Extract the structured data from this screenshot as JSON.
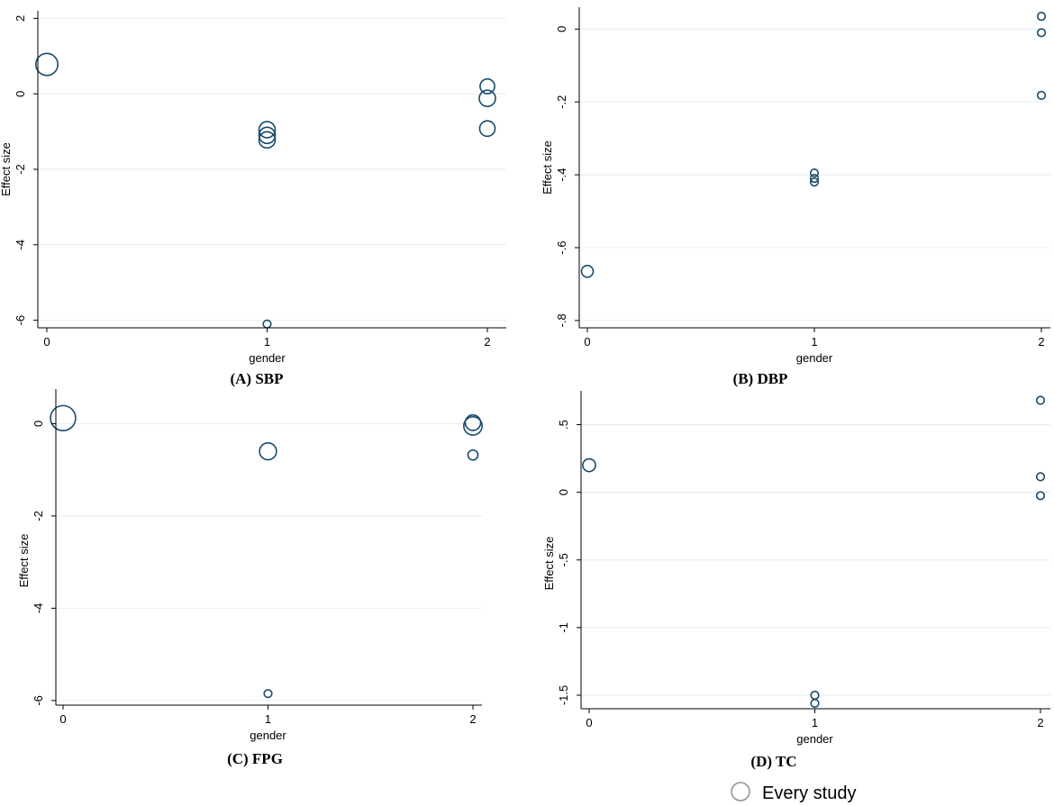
{
  "legend": {
    "label": "Every study",
    "marker_color": "#8a8f9c"
  },
  "colors": {
    "marker": "#1a4a6b",
    "grid": "#e6ecf0"
  },
  "chart_data": [
    {
      "id": "A",
      "type": "scatter",
      "caption": "(A)  SBP",
      "xlabel": "gender",
      "ylabel": "Effect size",
      "xlim": [
        0,
        2
      ],
      "ylim": [
        -6.2,
        2.2
      ],
      "x_ticks": [
        0,
        1,
        2
      ],
      "y_ticks": [
        2,
        0,
        -2,
        -4,
        -6
      ],
      "y_tick_labels": [
        "2",
        "0",
        "-2",
        "-4",
        "-6"
      ],
      "points": [
        {
          "x": 0,
          "y": 0.78,
          "weight": 3.8
        },
        {
          "x": 1,
          "y": -0.95,
          "weight": 2.0
        },
        {
          "x": 1,
          "y": -1.1,
          "weight": 2.0
        },
        {
          "x": 1,
          "y": -1.22,
          "weight": 2.0
        },
        {
          "x": 1,
          "y": -6.1,
          "weight": 0.4
        },
        {
          "x": 2,
          "y": 0.2,
          "weight": 1.6
        },
        {
          "x": 2,
          "y": -0.12,
          "weight": 2.0
        },
        {
          "x": 2,
          "y": -0.92,
          "weight": 1.8
        }
      ]
    },
    {
      "id": "B",
      "type": "scatter",
      "caption": "(B)  DBP",
      "xlabel": "gender",
      "ylabel": "Effect size",
      "xlim": [
        0,
        2
      ],
      "ylim": [
        -0.82,
        0.06
      ],
      "x_ticks": [
        0,
        1,
        2
      ],
      "y_ticks": [
        0,
        -0.2,
        -0.4,
        -0.6,
        -0.8
      ],
      "y_tick_labels": [
        "0",
        "-.2",
        "-.4",
        "-.6",
        "-.8"
      ],
      "points": [
        {
          "x": 0,
          "y": -0.665,
          "weight": 1.0
        },
        {
          "x": 1,
          "y": -0.395,
          "weight": 0.4
        },
        {
          "x": 1,
          "y": -0.41,
          "weight": 0.4
        },
        {
          "x": 1,
          "y": -0.42,
          "weight": 0.4
        },
        {
          "x": 2,
          "y": 0.035,
          "weight": 0.4
        },
        {
          "x": 2,
          "y": -0.01,
          "weight": 0.4
        },
        {
          "x": 2,
          "y": -0.182,
          "weight": 0.4
        }
      ]
    },
    {
      "id": "C",
      "type": "scatter",
      "caption": "(C)  FPG",
      "xlabel": "gender",
      "ylabel": "Effect size",
      "xlim": [
        0,
        2
      ],
      "ylim": [
        -6.1,
        0.75
      ],
      "x_ticks": [
        0,
        1,
        2
      ],
      "y_ticks": [
        0,
        -2,
        -4,
        -6
      ],
      "y_tick_labels": [
        "0",
        "-2",
        "-4",
        "-6"
      ],
      "points": [
        {
          "x": 0,
          "y": 0.12,
          "weight": 5.0
        },
        {
          "x": 1,
          "y": -0.6,
          "weight": 2.2
        },
        {
          "x": 1,
          "y": -5.85,
          "weight": 0.4
        },
        {
          "x": 2,
          "y": -0.05,
          "weight": 2.6
        },
        {
          "x": 2,
          "y": 0.02,
          "weight": 1.8
        },
        {
          "x": 2,
          "y": -0.68,
          "weight": 0.7
        }
      ]
    },
    {
      "id": "D",
      "type": "scatter",
      "caption": "(D)  TC",
      "xlabel": "gender",
      "ylabel": "Effect size",
      "xlim": [
        0,
        2
      ],
      "ylim": [
        -1.6,
        0.75
      ],
      "x_ticks": [
        0,
        1,
        2
      ],
      "y_ticks": [
        0.5,
        0,
        -0.5,
        -1,
        -1.5
      ],
      "y_tick_labels": [
        ".5",
        "0",
        "-.5",
        "-1",
        "-1.5"
      ],
      "points": [
        {
          "x": 0,
          "y": 0.2,
          "weight": 1.2
        },
        {
          "x": 1,
          "y": -1.5,
          "weight": 0.4
        },
        {
          "x": 1,
          "y": -1.56,
          "weight": 0.4
        },
        {
          "x": 2,
          "y": 0.68,
          "weight": 0.4
        },
        {
          "x": 2,
          "y": 0.115,
          "weight": 0.4
        },
        {
          "x": 2,
          "y": -0.025,
          "weight": 0.4
        }
      ]
    }
  ]
}
